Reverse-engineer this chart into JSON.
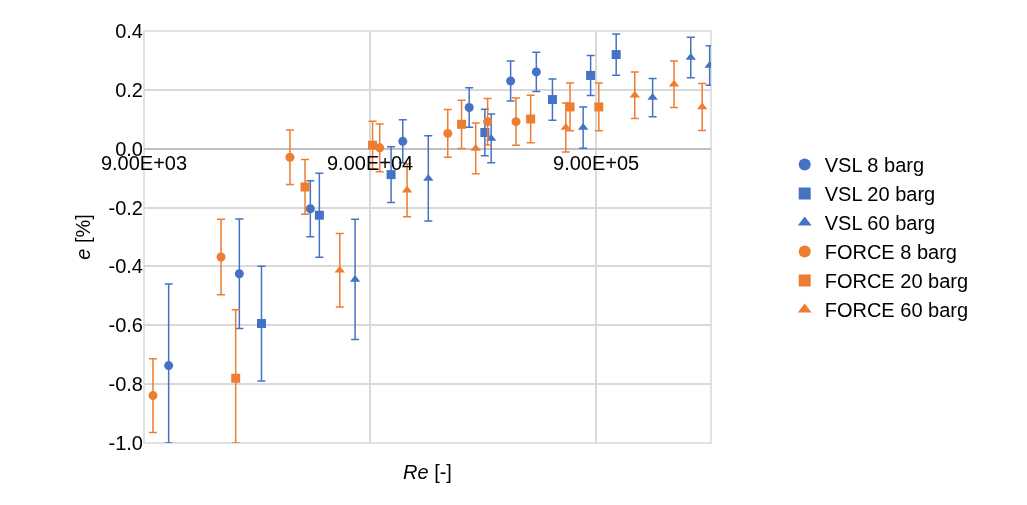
{
  "chart_data": {
    "type": "scatter",
    "xlabel": "Re [-]",
    "ylabel": "e [%]",
    "log": "x",
    "xlim": [
      9000,
      2900000
    ],
    "xticks": [
      {
        "value": 9000,
        "label": "9.00E+03"
      },
      {
        "value": 90000,
        "label": "9.00E+04"
      },
      {
        "value": 900000,
        "label": "9.00E+05"
      }
    ],
    "ylim": [
      -1.0,
      0.4
    ],
    "yticks": [
      {
        "value": -1.0,
        "label": "-1.0"
      },
      {
        "value": -0.8,
        "label": "-0.8"
      },
      {
        "value": -0.6,
        "label": "-0.6"
      },
      {
        "value": -0.4,
        "label": "-0.4"
      },
      {
        "value": -0.2,
        "label": "-0.2"
      },
      {
        "value": 0,
        "label": "0.0"
      },
      {
        "value": 0.2,
        "label": "0.2"
      },
      {
        "value": 0.4,
        "label": "0.4"
      }
    ],
    "grid": true,
    "legend": "right",
    "series": [
      {
        "name": "VSL 8 barg",
        "color": "#4472c4",
        "marker": "circle",
        "x": [
          11570,
          23770,
          48980,
          125600,
          247000,
          376700,
          489500
        ],
        "values": [
          -0.737,
          -0.425,
          -0.204,
          0.025,
          0.14,
          0.23,
          0.261
        ],
        "errors": [
          [
            -1.0,
            -0.46
          ],
          0.186,
          0.095,
          0.073,
          0.067,
          0.068,
          0.067
        ]
      },
      {
        "name": "VSL 20 barg",
        "color": "#4472c4",
        "marker": "square",
        "x": [
          29780,
          53700,
          111500,
          289700,
          576800,
          851000,
          1104000
        ],
        "values": [
          -0.594,
          -0.226,
          -0.088,
          0.055,
          0.167,
          0.249,
          0.32
        ],
        "errors": [
          0.195,
          0.143,
          0.095,
          0.079,
          0.07,
          0.068,
          0.07
        ]
      },
      {
        "name": "VSL 60 barg",
        "color": "#4472c4",
        "marker": "triangle",
        "x": [
          77270,
          162900,
          309000,
          788600,
          1600000,
          2360000,
          2860000
        ],
        "values": [
          -0.444,
          -0.101,
          0.035,
          0.072,
          0.174,
          0.31,
          0.283
        ],
        "errors": [
          0.204,
          0.145,
          0.083,
          0.07,
          0.065,
          0.069,
          0.067
        ]
      },
      {
        "name": "FORCE 8 barg",
        "color": "#ed7d31",
        "marker": "circle",
        "x": [
          9860,
          19720,
          39800,
          99300,
          198600,
          298000,
          398000
        ],
        "values": [
          -0.839,
          -0.368,
          -0.029,
          0.003,
          0.052,
          0.092,
          0.092
        ],
        "errors": [
          0.125,
          0.128,
          0.093,
          0.081,
          0.081,
          0.079,
          0.08
        ]
      },
      {
        "name": "FORCE 20 barg",
        "color": "#ed7d31",
        "marker": "square",
        "x": [
          22900,
          46400,
          92300,
          228500,
          462000,
          690000,
          925000
        ],
        "values": [
          -0.78,
          -0.13,
          0.012,
          0.083,
          0.101,
          0.142,
          0.142
        ],
        "errors": [
          [
            -1.0,
            -0.547
          ],
          0.093,
          0.081,
          0.082,
          0.081,
          0.081,
          0.081
        ]
      },
      {
        "name": "FORCE 60 barg",
        "color": "#ed7d31",
        "marker": "triangle",
        "x": [
          66100,
          131200,
          264000,
          661000,
          1334000,
          1990000,
          2650000
        ],
        "values": [
          -0.413,
          -0.141,
          0.001,
          0.072,
          0.182,
          0.219,
          0.142
        ],
        "errors": [
          0.125,
          0.09,
          0.086,
          0.083,
          0.079,
          0.079,
          0.08
        ]
      }
    ]
  }
}
